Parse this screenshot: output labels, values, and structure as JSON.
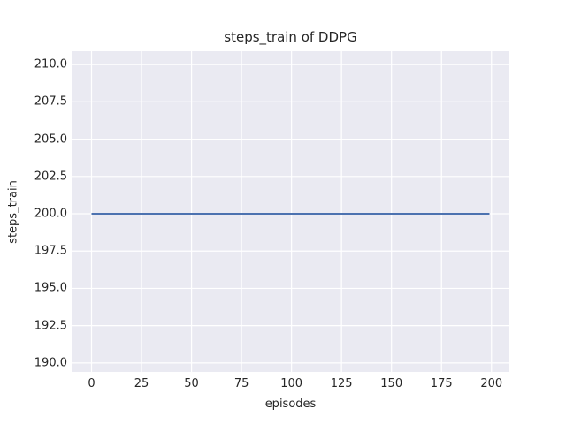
{
  "chart_data": {
    "type": "line",
    "title": "steps_train of DDPG",
    "xlabel": "episodes",
    "ylabel": "steps_train",
    "grid": true,
    "legend": false,
    "xlim": [
      -9.95,
      208.95
    ],
    "ylim": [
      189.4,
      210.9
    ],
    "x_ticks": {
      "values": [
        0,
        25,
        50,
        75,
        100,
        125,
        150,
        175,
        200
      ],
      "labels": [
        "0",
        "25",
        "50",
        "75",
        "100",
        "125",
        "150",
        "175",
        "200"
      ]
    },
    "y_ticks": {
      "values": [
        190.0,
        192.5,
        195.0,
        197.5,
        200.0,
        202.5,
        205.0,
        207.5,
        210.0
      ],
      "labels": [
        "190.0",
        "192.5",
        "195.0",
        "197.5",
        "200.0",
        "202.5",
        "205.0",
        "207.5",
        "210.0"
      ]
    },
    "series": [
      {
        "name": "steps_train",
        "description": "constant value 200 for every episode 0 through 199",
        "constant_value": 200,
        "x_start": 0,
        "x_end": 199,
        "points": [
          [
            0,
            200
          ],
          [
            199,
            200
          ]
        ],
        "color": "#4c72b0",
        "line_width": 2
      }
    ],
    "colors": {
      "figure_background": "#ffffff",
      "plot_background": "#eaeaf2",
      "gridline": "#ffffff",
      "text": "#262626"
    }
  }
}
